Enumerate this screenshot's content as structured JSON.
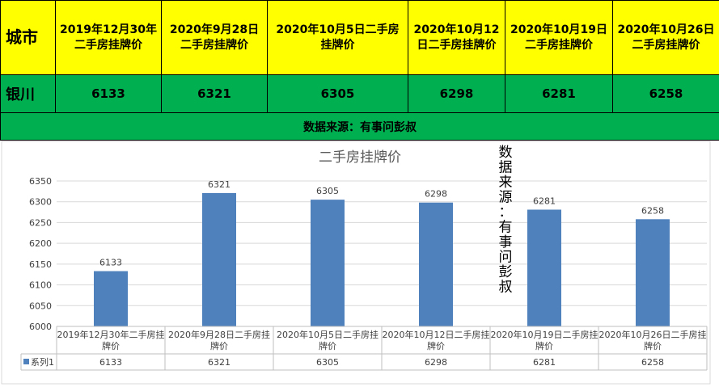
{
  "table": {
    "city_header": "城市",
    "headers": [
      "2019年12月30年二手房挂牌价",
      "2020年9月28日二手房挂牌价",
      "2020年10月5日二手房挂牌价",
      "2020年10月12日二手房挂牌价",
      "2020年10月19日二手房挂牌价",
      "2020年10月26日二手房挂牌价"
    ],
    "city": "银川",
    "values": [
      "6133",
      "6321",
      "6305",
      "6298",
      "6281",
      "6258"
    ],
    "source": "数据来源：有事问彭叔"
  },
  "watermark": "数据来源：有事问彭叔",
  "colors": {
    "header_bg": "#ffff00",
    "row_bg": "#00b050",
    "bar": "#4f81bd"
  },
  "chart_data": {
    "type": "bar",
    "title": "二手房挂牌价",
    "categories": [
      "2019年12月30年二手房挂牌价",
      "2020年9月28日二手房挂牌价",
      "2020年10月5日二手房挂牌价",
      "2020年10月12日二手房挂牌价",
      "2020年10月19日二手房挂牌价",
      "2020年10月26日二手房挂牌价"
    ],
    "series": [
      {
        "name": "系列1",
        "values": [
          6133,
          6321,
          6305,
          6298,
          6281,
          6258
        ]
      }
    ],
    "ylim": [
      6000,
      6350
    ],
    "yticks": [
      6000,
      6050,
      6100,
      6150,
      6200,
      6250,
      6300,
      6350
    ],
    "grid": true,
    "data_table": true
  }
}
